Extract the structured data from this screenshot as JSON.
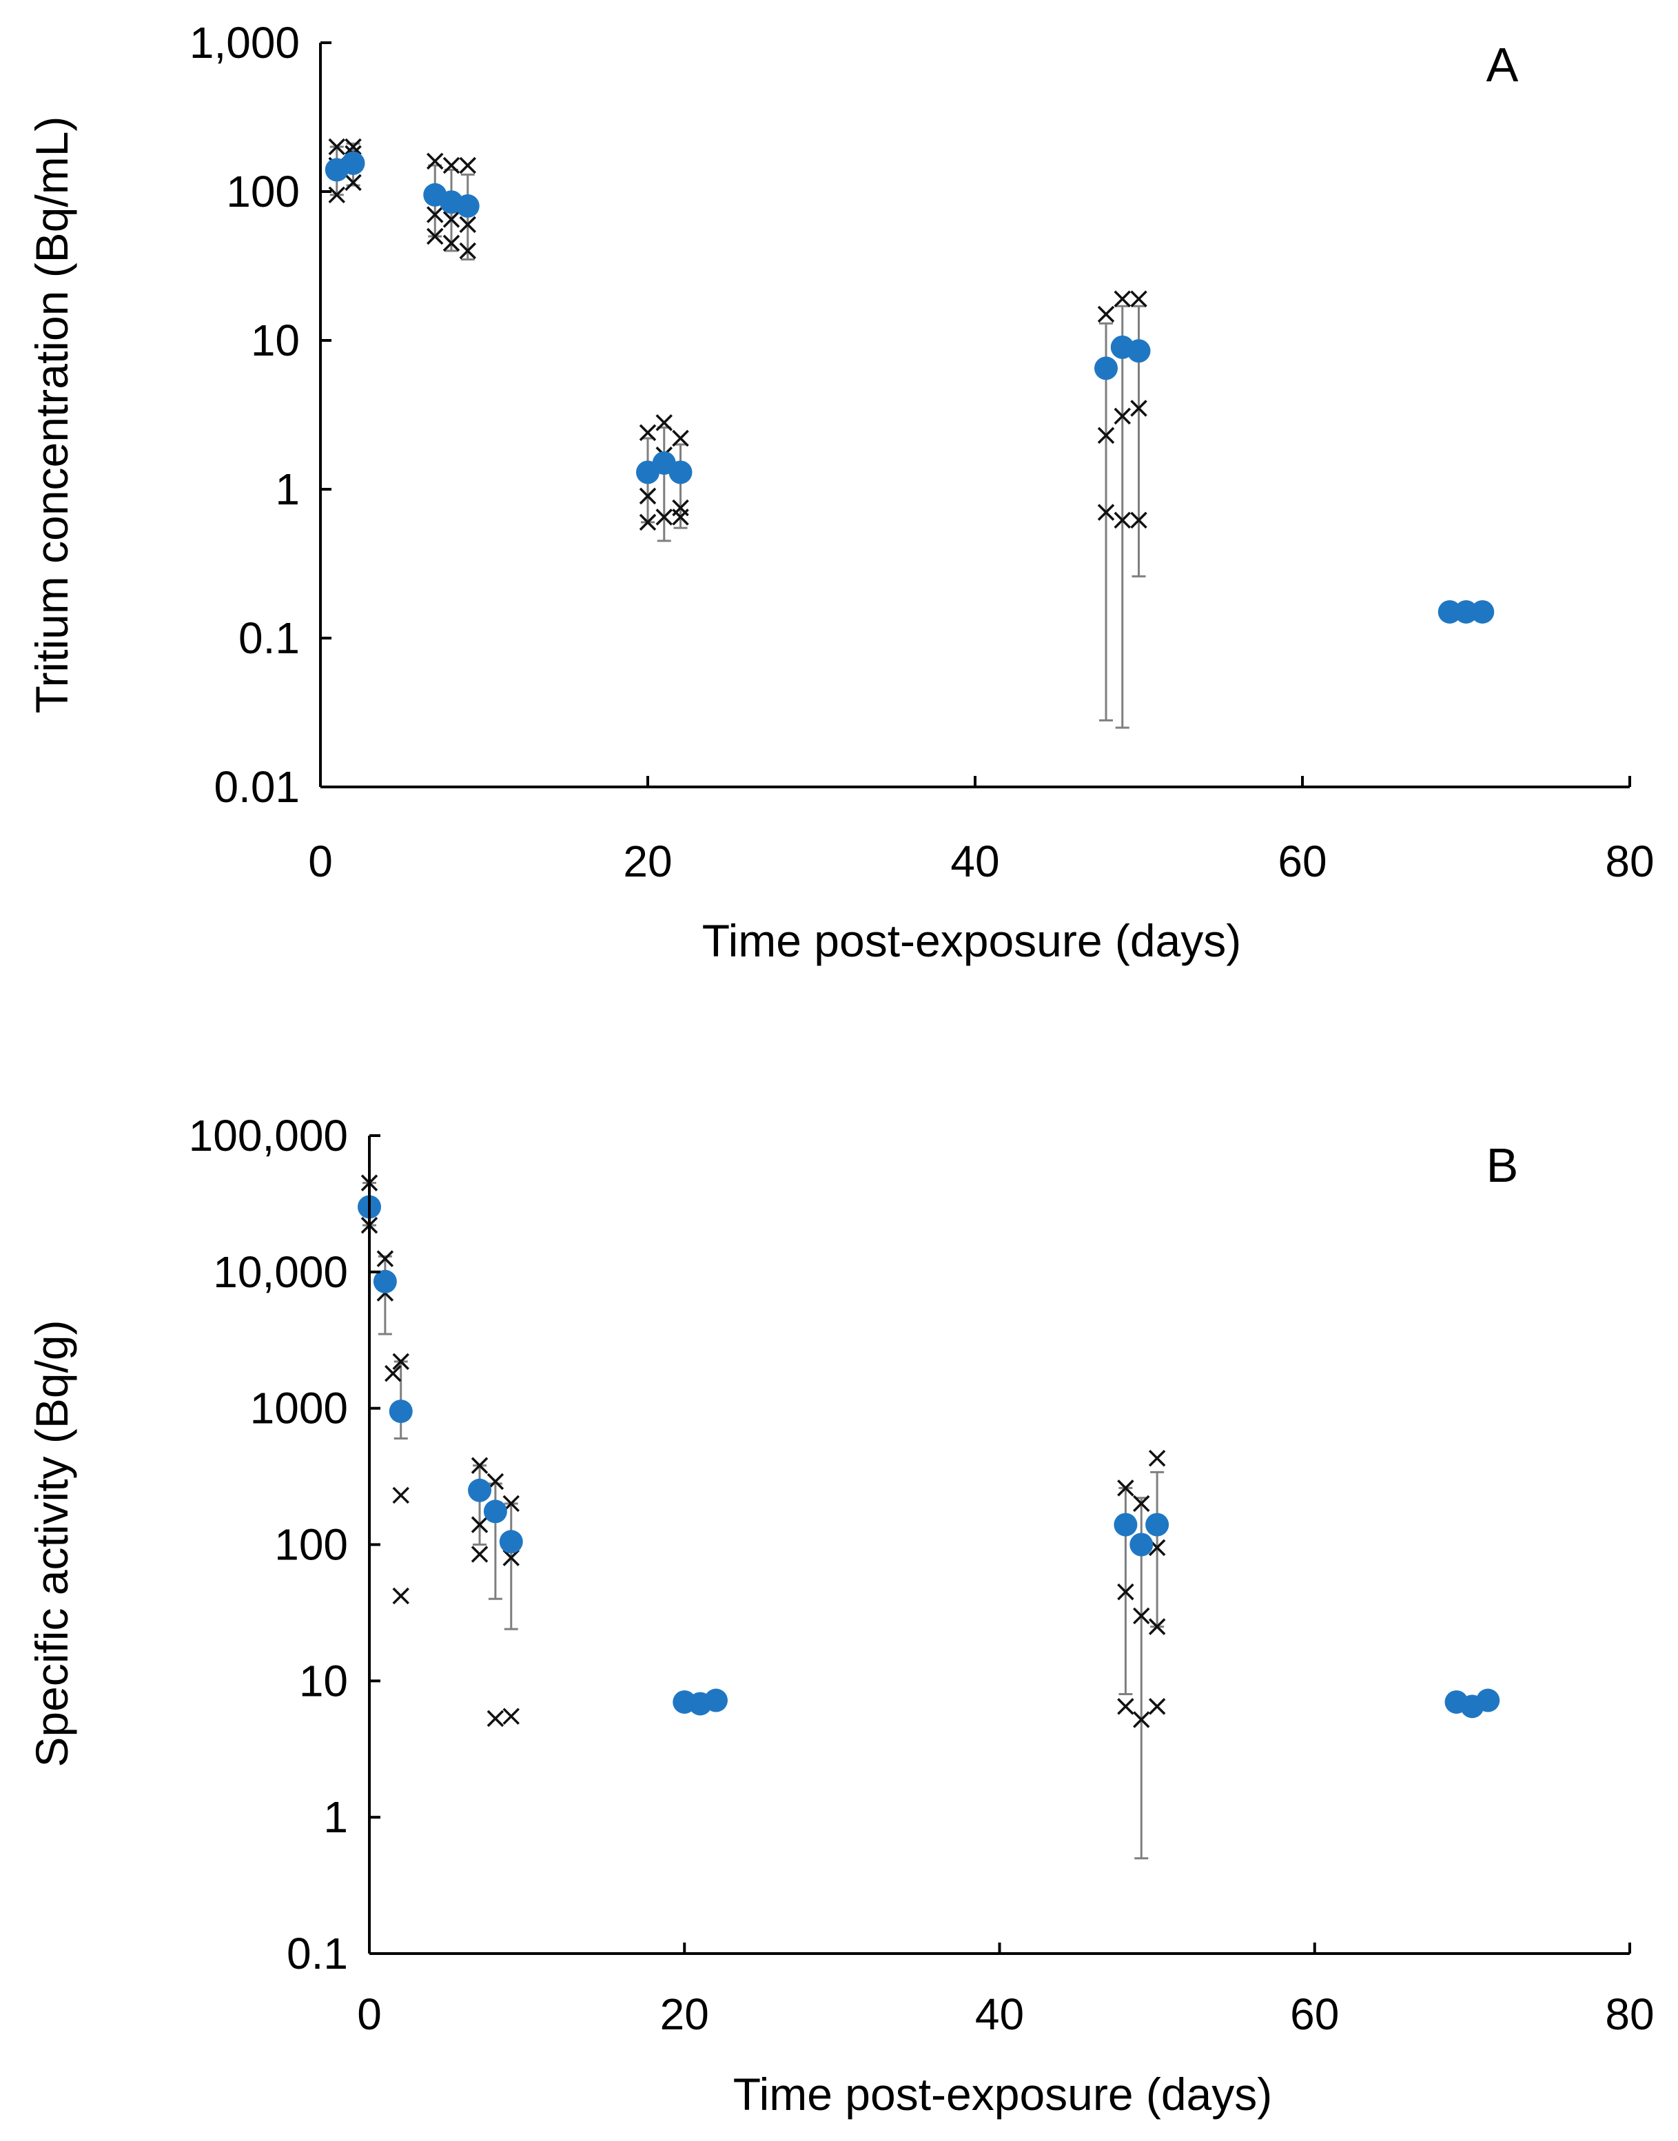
{
  "chart_data": [
    {
      "type": "scatter",
      "panel": "A",
      "xlabel": "Time post-exposure (days)",
      "ylabel": "Tritium concentration (Bq/mL)",
      "yscale": "log",
      "xlim": [
        0,
        80
      ],
      "ylim": [
        0.01,
        1000
      ],
      "xticks": [
        0,
        20,
        40,
        60,
        80
      ],
      "xtick_labels": [
        "0",
        "20",
        "40",
        "60",
        "80"
      ],
      "yticks": [
        0.01,
        0.1,
        1,
        10,
        100,
        1000
      ],
      "ytick_labels": [
        "0.01",
        "0.1",
        "1",
        "10",
        "100",
        "1,000"
      ],
      "colors": {
        "mean": "#1f77c4",
        "individual": "#111111",
        "error": "#7f7f7f"
      },
      "series": [
        {
          "name": "mean",
          "points": [
            {
              "x": 1,
              "y": 140,
              "lo": 95,
              "hi": 200
            },
            {
              "x": 2,
              "y": 155,
              "lo": 110,
              "hi": 210
            },
            {
              "x": 7,
              "y": 95,
              "lo": 50,
              "hi": 150
            },
            {
              "x": 8,
              "y": 85,
              "lo": 40,
              "hi": 140
            },
            {
              "x": 9,
              "y": 80,
              "lo": 35,
              "hi": 130
            },
            {
              "x": 20,
              "y": 1.3,
              "lo": 0.6,
              "hi": 2.2
            },
            {
              "x": 21,
              "y": 1.5,
              "lo": 0.45,
              "hi": 2.6
            },
            {
              "x": 22,
              "y": 1.3,
              "lo": 0.55,
              "hi": 2.0
            },
            {
              "x": 48,
              "y": 6.5,
              "lo": 0.028,
              "hi": 13
            },
            {
              "x": 49,
              "y": 9,
              "lo": 0.025,
              "hi": 17
            },
            {
              "x": 50,
              "y": 8.5,
              "lo": 0.26,
              "hi": 17
            },
            {
              "x": 69,
              "y": 0.15
            },
            {
              "x": 70,
              "y": 0.15
            },
            {
              "x": 71,
              "y": 0.15
            }
          ]
        },
        {
          "name": "individual",
          "points": [
            {
              "x": 1,
              "y": 200
            },
            {
              "x": 1,
              "y": 95
            },
            {
              "x": 1,
              "y": 150
            },
            {
              "x": 2,
              "y": 200
            },
            {
              "x": 2,
              "y": 115
            },
            {
              "x": 2,
              "y": 180
            },
            {
              "x": 7,
              "y": 160
            },
            {
              "x": 7,
              "y": 70
            },
            {
              "x": 7,
              "y": 50
            },
            {
              "x": 8,
              "y": 150
            },
            {
              "x": 8,
              "y": 65
            },
            {
              "x": 8,
              "y": 45
            },
            {
              "x": 9,
              "y": 150
            },
            {
              "x": 9,
              "y": 60
            },
            {
              "x": 9,
              "y": 40
            },
            {
              "x": 20,
              "y": 2.4
            },
            {
              "x": 20,
              "y": 0.9
            },
            {
              "x": 20,
              "y": 0.6
            },
            {
              "x": 21,
              "y": 2.8
            },
            {
              "x": 21,
              "y": 1.7
            },
            {
              "x": 21,
              "y": 0.65
            },
            {
              "x": 22,
              "y": 2.2
            },
            {
              "x": 22,
              "y": 0.75
            },
            {
              "x": 22,
              "y": 0.65
            },
            {
              "x": 48,
              "y": 15
            },
            {
              "x": 48,
              "y": 2.3
            },
            {
              "x": 48,
              "y": 0.7
            },
            {
              "x": 49,
              "y": 19
            },
            {
              "x": 49,
              "y": 3.1
            },
            {
              "x": 49,
              "y": 0.62
            },
            {
              "x": 50,
              "y": 19
            },
            {
              "x": 50,
              "y": 3.5
            },
            {
              "x": 50,
              "y": 0.62
            }
          ]
        }
      ]
    },
    {
      "type": "scatter",
      "panel": "B",
      "xlabel": "Time post-exposure (days)",
      "ylabel": "Specific activity (Bq/g)",
      "yscale": "log",
      "xlim": [
        0,
        80
      ],
      "ylim": [
        0.1,
        100000
      ],
      "xticks": [
        0,
        20,
        40,
        60,
        80
      ],
      "xtick_labels": [
        "0",
        "20",
        "40",
        "60",
        "80"
      ],
      "yticks": [
        0.1,
        1,
        10,
        100,
        1000,
        10000,
        100000
      ],
      "ytick_labels": [
        "0.1",
        "1",
        "10",
        "100",
        "1000",
        "10,000",
        "100,000"
      ],
      "colors": {
        "mean": "#1f77c4",
        "individual": "#111111",
        "error": "#7f7f7f"
      },
      "series": [
        {
          "name": "mean",
          "points": [
            {
              "x": 0,
              "y": 30000,
              "lo": 22000,
              "hi": 45000
            },
            {
              "x": 1,
              "y": 8500,
              "lo": 3500,
              "hi": 13000
            },
            {
              "x": 2,
              "y": 950,
              "lo": 600,
              "hi": 2200
            },
            {
              "x": 7,
              "y": 250,
              "lo": 100,
              "hi": 380
            },
            {
              "x": 8,
              "y": 175,
              "lo": 40,
              "hi": 280
            },
            {
              "x": 9,
              "y": 105,
              "lo": 24,
              "hi": 200
            },
            {
              "x": 20,
              "y": 7
            },
            {
              "x": 21,
              "y": 6.8
            },
            {
              "x": 22,
              "y": 7.2
            },
            {
              "x": 48,
              "y": 140,
              "lo": 8,
              "hi": 260
            },
            {
              "x": 49,
              "y": 100,
              "lo": 0.5,
              "hi": 220
            },
            {
              "x": 50,
              "y": 140,
              "lo": 25,
              "hi": 340
            },
            {
              "x": 69,
              "y": 7
            },
            {
              "x": 70,
              "y": 6.5
            },
            {
              "x": 71,
              "y": 7.2
            }
          ]
        },
        {
          "name": "individual",
          "points": [
            {
              "x": 0,
              "y": 45000
            },
            {
              "x": 0,
              "y": 22000
            },
            {
              "x": 1,
              "y": 12500
            },
            {
              "x": 1,
              "y": 7000
            },
            {
              "x": 1.5,
              "y": 1800
            },
            {
              "x": 2,
              "y": 2200
            },
            {
              "x": 2,
              "y": 230
            },
            {
              "x": 2,
              "y": 42
            },
            {
              "x": 7,
              "y": 380
            },
            {
              "x": 7,
              "y": 140
            },
            {
              "x": 7,
              "y": 85
            },
            {
              "x": 8,
              "y": 290
            },
            {
              "x": 8,
              "y": 5.3
            },
            {
              "x": 9,
              "y": 200
            },
            {
              "x": 9,
              "y": 80
            },
            {
              "x": 9,
              "y": 5.5
            },
            {
              "x": 48,
              "y": 260
            },
            {
              "x": 48,
              "y": 45
            },
            {
              "x": 48,
              "y": 6.5
            },
            {
              "x": 49,
              "y": 200
            },
            {
              "x": 49,
              "y": 30
            },
            {
              "x": 49,
              "y": 5.2
            },
            {
              "x": 50,
              "y": 430
            },
            {
              "x": 50,
              "y": 95
            },
            {
              "x": 50,
              "y": 25
            },
            {
              "x": 50,
              "y": 6.5
            }
          ]
        }
      ]
    }
  ]
}
